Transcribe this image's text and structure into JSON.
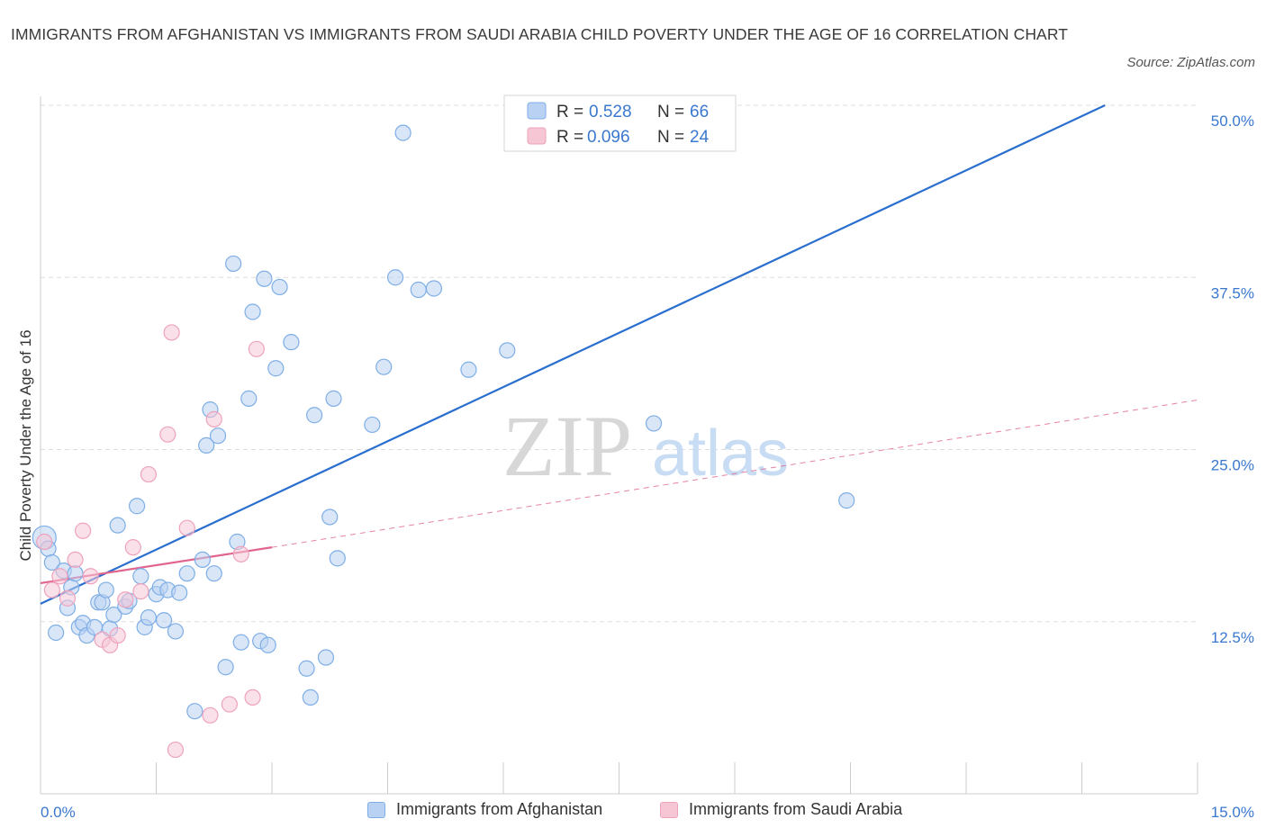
{
  "title": "IMMIGRANTS FROM AFGHANISTAN VS IMMIGRANTS FROM SAUDI ARABIA CHILD POVERTY UNDER THE AGE OF 16 CORRELATION CHART",
  "source": "Source: ZipAtlas.com",
  "watermark": {
    "zip": "ZIP",
    "atlas": "atlas"
  },
  "colors": {
    "blue": "#7eaee6",
    "blue_fill": "#b9d2f3",
    "blue_line": "#2a6fd0",
    "pink": "#eea3bd",
    "pink_fill": "#f6c6d5",
    "pink_line": "#e0648e",
    "axis_text": "#3a78d0",
    "grid": "#dddddd"
  },
  "chart_data": {
    "type": "scatter",
    "xlabel": "",
    "ylabel": "Child Poverty Under the Age of 16",
    "xlim": [
      0,
      15
    ],
    "ylim": [
      0,
      50
    ],
    "x_tick_labels": [
      {
        "value": 0,
        "label": "0.0%"
      },
      {
        "value": 15,
        "label": "15.0%"
      }
    ],
    "y_tick_labels": [
      {
        "value": 12.5,
        "label": "12.5%"
      },
      {
        "value": 25,
        "label": "25.0%"
      },
      {
        "value": 37.5,
        "label": "37.5%"
      },
      {
        "value": 50,
        "label": "50.0%"
      }
    ],
    "legend_stats": [
      {
        "r_label": "R =",
        "r_value": "0.528",
        "n_label": "N =",
        "n_value": "66"
      },
      {
        "r_label": "R =",
        "r_value": "0.096",
        "n_label": "N =",
        "n_value": "24"
      }
    ],
    "series": [
      {
        "name": "Immigrants from Afghanistan",
        "color": "#7eaee6",
        "points": [
          [
            0.05,
            18.6
          ],
          [
            0.1,
            17.8
          ],
          [
            0.15,
            16.8
          ],
          [
            0.2,
            11.7
          ],
          [
            0.3,
            16.2
          ],
          [
            0.35,
            13.5
          ],
          [
            0.4,
            15.0
          ],
          [
            0.45,
            16.0
          ],
          [
            0.5,
            12.1
          ],
          [
            0.55,
            12.4
          ],
          [
            0.6,
            11.5
          ],
          [
            0.7,
            12.1
          ],
          [
            0.75,
            13.9
          ],
          [
            0.8,
            13.9
          ],
          [
            0.85,
            14.8
          ],
          [
            0.9,
            12.0
          ],
          [
            0.95,
            13.0
          ],
          [
            1.0,
            19.5
          ],
          [
            1.1,
            13.6
          ],
          [
            1.15,
            14.0
          ],
          [
            1.25,
            20.9
          ],
          [
            1.3,
            15.8
          ],
          [
            1.35,
            12.1
          ],
          [
            1.4,
            12.8
          ],
          [
            1.5,
            14.5
          ],
          [
            1.55,
            15.0
          ],
          [
            1.6,
            12.6
          ],
          [
            1.65,
            14.8
          ],
          [
            1.75,
            11.8
          ],
          [
            1.8,
            14.6
          ],
          [
            1.9,
            16.0
          ],
          [
            2.0,
            6.0
          ],
          [
            2.1,
            17.0
          ],
          [
            2.15,
            25.3
          ],
          [
            2.2,
            27.9
          ],
          [
            2.25,
            16.0
          ],
          [
            2.3,
            26.0
          ],
          [
            2.4,
            9.2
          ],
          [
            2.5,
            38.5
          ],
          [
            2.55,
            18.3
          ],
          [
            2.6,
            11.0
          ],
          [
            2.7,
            28.7
          ],
          [
            2.75,
            35.0
          ],
          [
            2.85,
            11.1
          ],
          [
            2.9,
            37.4
          ],
          [
            2.95,
            10.8
          ],
          [
            3.05,
            30.9
          ],
          [
            3.1,
            36.8
          ],
          [
            3.25,
            32.8
          ],
          [
            3.45,
            9.1
          ],
          [
            3.5,
            7.0
          ],
          [
            3.55,
            27.5
          ],
          [
            3.7,
            9.9
          ],
          [
            3.75,
            20.1
          ],
          [
            3.8,
            28.7
          ],
          [
            3.85,
            17.1
          ],
          [
            4.3,
            26.8
          ],
          [
            4.45,
            31.0
          ],
          [
            4.6,
            37.5
          ],
          [
            4.7,
            48.0
          ],
          [
            4.9,
            36.6
          ],
          [
            5.1,
            36.7
          ],
          [
            5.55,
            30.8
          ],
          [
            6.05,
            32.2
          ],
          [
            7.95,
            26.9
          ],
          [
            10.45,
            21.3
          ]
        ],
        "trend": [
          [
            0,
            13.8
          ],
          [
            13.8,
            50
          ]
        ]
      },
      {
        "name": "Immigrants from Saudi Arabia",
        "color": "#eea3bd",
        "points": [
          [
            0.05,
            18.3
          ],
          [
            0.15,
            14.8
          ],
          [
            0.25,
            15.8
          ],
          [
            0.35,
            14.2
          ],
          [
            0.45,
            17.0
          ],
          [
            0.55,
            19.1
          ],
          [
            0.65,
            15.8
          ],
          [
            0.8,
            11.2
          ],
          [
            0.9,
            10.8
          ],
          [
            1.0,
            11.5
          ],
          [
            1.1,
            14.1
          ],
          [
            1.2,
            17.9
          ],
          [
            1.3,
            14.7
          ],
          [
            1.4,
            23.2
          ],
          [
            1.65,
            26.1
          ],
          [
            1.7,
            33.5
          ],
          [
            1.75,
            3.2
          ],
          [
            1.9,
            19.3
          ],
          [
            2.2,
            5.7
          ],
          [
            2.25,
            27.2
          ],
          [
            2.45,
            6.5
          ],
          [
            2.6,
            17.4
          ],
          [
            2.75,
            7.0
          ],
          [
            2.8,
            32.3
          ]
        ],
        "trend": [
          [
            0,
            15.3
          ],
          [
            3.0,
            17.9
          ]
        ],
        "trend_dashed": [
          [
            3.0,
            17.9
          ],
          [
            15,
            28.6
          ]
        ]
      }
    ],
    "legend_placement": "top-center",
    "grid": true
  }
}
